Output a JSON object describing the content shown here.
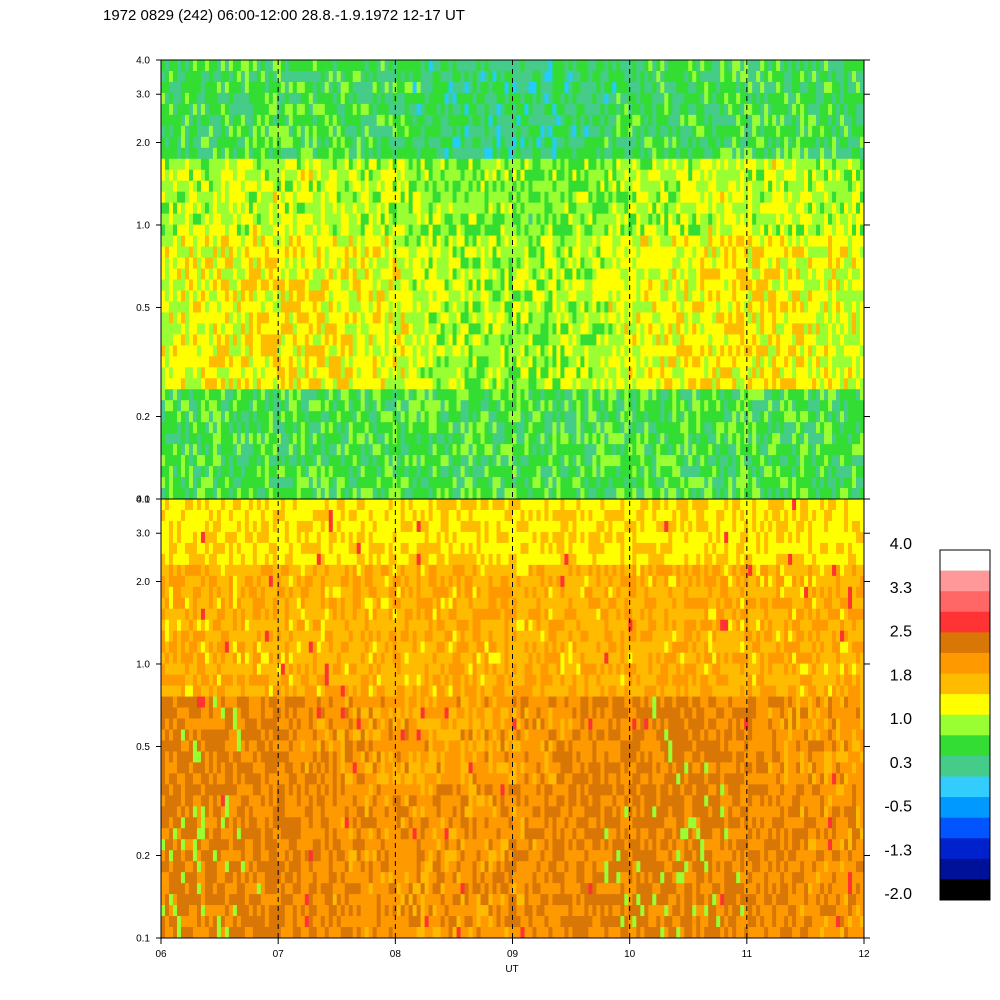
{
  "chart_data": {
    "type": "heatmap",
    "title": "1972 0829 (242) 06:00-12:00 28.8.-1.9.1972  12-17 UT",
    "xlabel": "UT",
    "x_ticks": [
      "06",
      "07",
      "08",
      "09",
      "10",
      "11",
      "12"
    ],
    "x_range": [
      6,
      12
    ],
    "y_scale": "log",
    "y_range": [
      0.1,
      4.0
    ],
    "panels": [
      {
        "name": "upper",
        "y_ticks": [
          {
            "value": 0.1,
            "label": "0.1"
          },
          {
            "value": 0.2,
            "label": "0.2"
          },
          {
            "value": 0.5,
            "label": "0.5"
          },
          {
            "value": 1.0,
            "label": "1.0"
          },
          {
            "value": 2.0,
            "label": "2.0"
          },
          {
            "value": 3.0,
            "label": "3.0"
          },
          {
            "value": 4.0,
            "label": "4.0"
          }
        ],
        "dominant_level": "0.3 to 1.0"
      },
      {
        "name": "lower",
        "y_ticks": [
          {
            "value": 0.1,
            "label": "0.1"
          },
          {
            "value": 0.2,
            "label": "0.2"
          },
          {
            "value": 0.5,
            "label": "0.5"
          },
          {
            "value": 1.0,
            "label": "1.0"
          },
          {
            "value": 2.0,
            "label": "2.0"
          },
          {
            "value": 3.0,
            "label": "3.0"
          },
          {
            "value": 4.0,
            "label": "4.0"
          }
        ],
        "dominant_level": "1.0 to 2.5"
      }
    ],
    "hour_grid": "dashed vertical lines at each hour",
    "colorbar": {
      "labels": [
        "4.0",
        "3.3",
        "2.5",
        "1.8",
        "1.0",
        "0.3",
        "-0.5",
        "-1.3",
        "-2.0"
      ],
      "colors": [
        "#ffffff",
        "#ff9999",
        "#ff6666",
        "#ff3333",
        "#d97706",
        "#ff9900",
        "#ffbb00",
        "#ffff00",
        "#99ff33",
        "#33dd33",
        "#44cc88",
        "#33ccff",
        "#0099ff",
        "#0055ff",
        "#0022cc",
        "#001199",
        "#000000"
      ]
    }
  }
}
